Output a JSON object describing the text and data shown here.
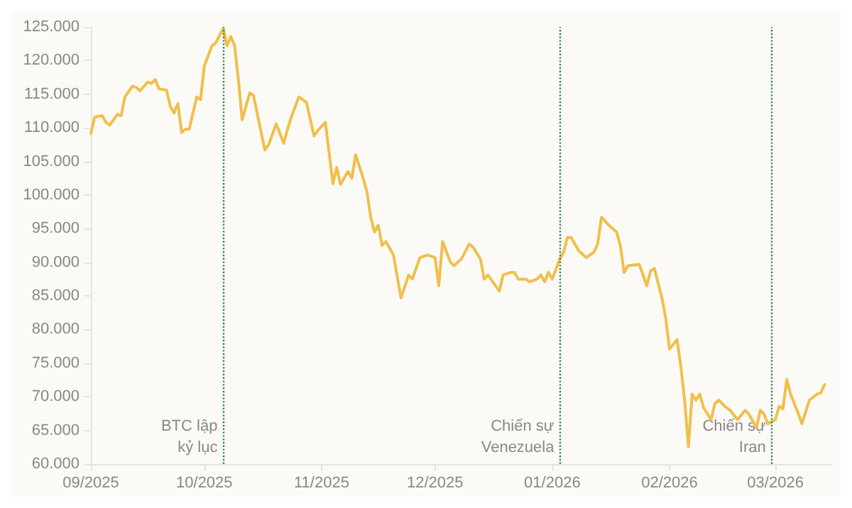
{
  "chart_data": {
    "type": "line",
    "x": [
      "2025-09-01",
      "2025-09-02",
      "2025-09-04",
      "2025-09-05",
      "2025-09-06",
      "2025-09-08",
      "2025-09-09",
      "2025-09-10",
      "2025-09-12",
      "2025-09-13",
      "2025-09-14",
      "2025-09-16",
      "2025-09-17",
      "2025-09-18",
      "2025-09-19",
      "2025-09-21",
      "2025-09-22",
      "2025-09-23",
      "2025-09-24",
      "2025-09-25",
      "2025-09-26",
      "2025-09-27",
      "2025-09-29",
      "2025-09-30",
      "2025-10-01",
      "2025-10-03",
      "2025-10-04",
      "2025-10-06",
      "2025-10-07",
      "2025-10-08",
      "2025-10-09",
      "2025-10-10",
      "2025-10-11",
      "2025-10-13",
      "2025-10-14",
      "2025-10-17",
      "2025-10-18",
      "2025-10-20",
      "2025-10-22",
      "2025-10-23",
      "2025-10-24",
      "2025-10-26",
      "2025-10-28",
      "2025-10-30",
      "2025-10-31",
      "2025-11-02",
      "2025-11-04",
      "2025-11-05",
      "2025-11-06",
      "2025-11-08",
      "2025-11-09",
      "2025-11-10",
      "2025-11-12",
      "2025-11-13",
      "2025-11-14",
      "2025-11-15",
      "2025-11-16",
      "2025-11-17",
      "2025-11-18",
      "2025-11-20",
      "2025-11-22",
      "2025-11-24",
      "2025-11-25",
      "2025-11-27",
      "2025-11-29",
      "2025-12-01",
      "2025-12-02",
      "2025-12-03",
      "2025-12-05",
      "2025-12-06",
      "2025-12-08",
      "2025-12-10",
      "2025-12-11",
      "2025-12-13",
      "2025-12-14",
      "2025-12-15",
      "2025-12-17",
      "2025-12-18",
      "2025-12-19",
      "2025-12-21",
      "2025-12-22",
      "2025-12-23",
      "2025-12-25",
      "2025-12-26",
      "2025-12-28",
      "2025-12-29",
      "2025-12-30",
      "2025-12-31",
      "2026-01-01",
      "2026-01-03",
      "2026-01-04",
      "2026-01-05",
      "2026-01-06",
      "2026-01-08",
      "2026-01-10",
      "2026-01-12",
      "2026-01-13",
      "2026-01-14",
      "2026-01-16",
      "2026-01-18",
      "2026-01-19",
      "2026-01-20",
      "2026-01-21",
      "2026-01-24",
      "2026-01-26",
      "2026-01-27",
      "2026-01-28",
      "2026-01-30",
      "2026-01-31",
      "2026-02-01",
      "2026-02-03",
      "2026-02-04",
      "2026-02-05",
      "2026-02-06",
      "2026-02-07",
      "2026-02-08",
      "2026-02-09",
      "2026-02-10",
      "2026-02-12",
      "2026-02-13",
      "2026-02-14",
      "2026-02-16",
      "2026-02-17",
      "2026-02-19",
      "2026-02-21",
      "2026-02-22",
      "2026-02-24",
      "2026-02-25",
      "2026-02-26",
      "2026-02-27",
      "2026-03-01",
      "2026-03-02",
      "2026-03-03",
      "2026-03-04",
      "2026-03-05",
      "2026-03-07",
      "2026-03-08",
      "2026-03-10",
      "2026-03-12",
      "2026-03-13",
      "2026-03-14"
    ],
    "series": [
      {
        "color": "#f0bf4c",
        "values": [
          109200,
          111600,
          111800,
          110800,
          110400,
          112000,
          111800,
          114600,
          116200,
          116000,
          115500,
          116800,
          116600,
          117200,
          115800,
          115600,
          113200,
          112200,
          113600,
          109300,
          109800,
          109800,
          114600,
          114200,
          119200,
          122200,
          122600,
          124800,
          122200,
          123600,
          122200,
          117200,
          111200,
          115200,
          114800,
          106700,
          107500,
          110600,
          107700,
          109800,
          111600,
          114600,
          113800,
          108800,
          109600,
          110800,
          101700,
          104100,
          101600,
          103500,
          102500,
          106000,
          102500,
          100500,
          96700,
          94500,
          95500,
          92500,
          93100,
          91100,
          84700,
          88100,
          87500,
          90700,
          91100,
          90700,
          86500,
          93100,
          90100,
          89500,
          90500,
          92700,
          92300,
          90500,
          87500,
          88100,
          86500,
          85700,
          88100,
          88500,
          88500,
          87500,
          87500,
          87100,
          87500,
          88100,
          87100,
          88500,
          87500,
          90500,
          91500,
          93700,
          93700,
          91700,
          90700,
          91500,
          92700,
          96700,
          95500,
          94500,
          92500,
          88500,
          89500,
          89700,
          86500,
          88700,
          89100,
          84700,
          81700,
          77100,
          78500,
          74500,
          69500,
          62600,
          70400,
          69500,
          70400,
          68400,
          66600,
          69000,
          69500,
          68400,
          68000,
          66600,
          68000,
          67400,
          65400,
          68000,
          67400,
          66000,
          66600,
          68600,
          68200,
          72600,
          70400,
          67600,
          66000,
          69500,
          70400,
          70600,
          71800
        ]
      }
    ],
    "xlim": [
      "2025-09-01",
      "2026-03-16"
    ],
    "xticks": [
      {
        "value": "2025-09-01",
        "label": "09/2025"
      },
      {
        "value": "2025-10-01",
        "label": "10/2025"
      },
      {
        "value": "2025-11-01",
        "label": "11/2025"
      },
      {
        "value": "2025-12-01",
        "label": "12/2025"
      },
      {
        "value": "2026-01-01",
        "label": "01/2026"
      },
      {
        "value": "2026-02-01",
        "label": "02/2026"
      },
      {
        "value": "2026-03-01",
        "label": "03/2026"
      }
    ],
    "ylim": [
      60000,
      125000
    ],
    "yticks": [
      {
        "value": 60000,
        "label": "60.000"
      },
      {
        "value": 65000,
        "label": "65.000"
      },
      {
        "value": 70000,
        "label": "70.000"
      },
      {
        "value": 75000,
        "label": "75.000"
      },
      {
        "value": 80000,
        "label": "80.000"
      },
      {
        "value": 85000,
        "label": "85.000"
      },
      {
        "value": 90000,
        "label": "90.000"
      },
      {
        "value": 95000,
        "label": "95.000"
      },
      {
        "value": 100000,
        "label": "100.000"
      },
      {
        "value": 105000,
        "label": "105.000"
      },
      {
        "value": 110000,
        "label": "110.000"
      },
      {
        "value": 115000,
        "label": "115.000"
      },
      {
        "value": 120000,
        "label": "120.000"
      },
      {
        "value": 125000,
        "label": "125.000"
      }
    ],
    "ref_lines": [
      {
        "axis": "x",
        "value": "2025-10-06",
        "label": "BTC lập\nkỷ lục",
        "color": "#3a8a5a",
        "line_style": "dotted"
      },
      {
        "axis": "x",
        "value": "2026-01-03",
        "label": "Chiến sự\nVenezuela",
        "color": "#3a8a5a",
        "line_style": "dotted"
      },
      {
        "axis": "x",
        "value": "2026-02-28",
        "label": "Chiến sự\nIran",
        "color": "#3a8a5a",
        "line_style": "dotted"
      }
    ],
    "grid": false,
    "marker": "none",
    "line_style": "solid"
  }
}
